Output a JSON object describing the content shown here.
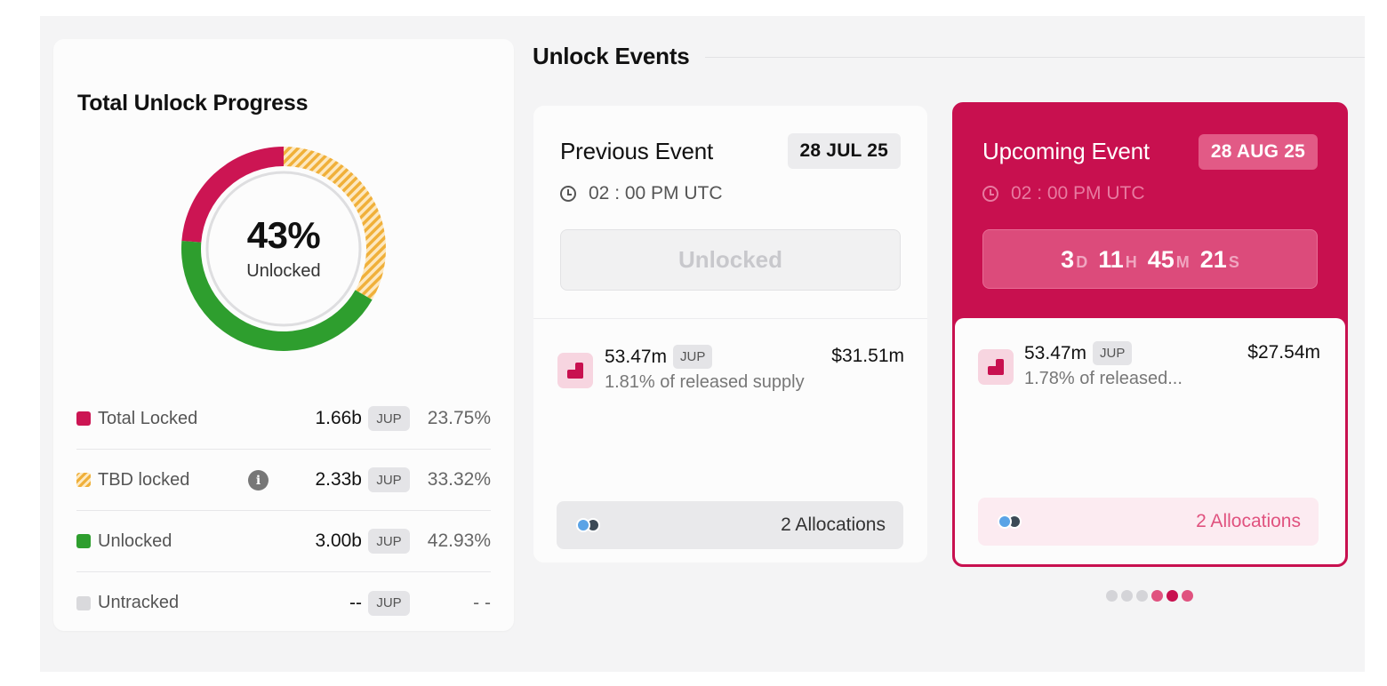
{
  "progress": {
    "title": "Total Unlock Progress",
    "percent_label": "43%",
    "center_label": "Unlocked",
    "segments": [
      {
        "name": "Total Locked",
        "percent": 23.75,
        "color": "#cc1553",
        "pattern": "solid"
      },
      {
        "name": "TBD locked",
        "percent": 33.32,
        "color": "#f0b03a",
        "pattern": "striped"
      },
      {
        "name": "Unlocked",
        "percent": 42.93,
        "color": "#2e9e2e",
        "pattern": "solid"
      }
    ],
    "legend": [
      {
        "label": "Total Locked",
        "amount": "1.66b",
        "token": "JUP",
        "percent": "23.75%",
        "color": "#cc1553",
        "info": false
      },
      {
        "label": "TBD locked",
        "amount": "2.33b",
        "token": "JUP",
        "percent": "33.32%",
        "color": "#f0b03a",
        "info": true
      },
      {
        "label": "Unlocked",
        "amount": "3.00b",
        "token": "JUP",
        "percent": "42.93%",
        "color": "#2e9e2e",
        "info": false
      },
      {
        "label": "Untracked",
        "amount": "--",
        "token": "JUP",
        "percent": "- -",
        "color": "#d9d9dc",
        "info": false
      }
    ]
  },
  "events": {
    "title": "Unlock Events",
    "previous": {
      "title": "Previous Event",
      "date": "28 JUL 25",
      "time": "02 : 00 PM UTC",
      "status": "Unlocked",
      "amount": "53.47m",
      "token": "JUP",
      "usd": "$31.51m",
      "supply": "1.81% of released supply",
      "allocations": "2 Allocations"
    },
    "upcoming": {
      "title": "Upcoming Event",
      "date": "28 AUG 25",
      "time": "02 : 00 PM UTC",
      "countdown": {
        "days": "3",
        "days_unit": "D",
        "hours": "11",
        "hours_unit": "H",
        "minutes": "45",
        "minutes_unit": "M",
        "seconds": "21",
        "seconds_unit": "S"
      },
      "amount": "53.47m",
      "token": "JUP",
      "usd": "$27.54m",
      "supply": "1.78% of released...",
      "allocations": "2 Allocations"
    },
    "pager": {
      "total": 6,
      "current": 5
    }
  },
  "theme": {
    "accent": "#c8104f",
    "accent_light": "#e0527f",
    "canvas": "#f4f4f5"
  }
}
